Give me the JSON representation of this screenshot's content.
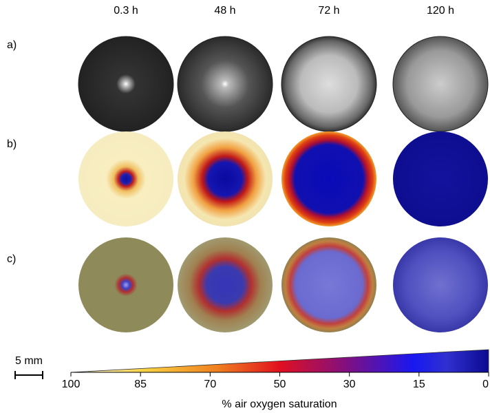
{
  "columns": [
    "0.3 h",
    "48 h",
    "72 h",
    "120 h"
  ],
  "rows": [
    "a)",
    "b)",
    "c)"
  ],
  "scale_bar": "5 mm",
  "colorbar": {
    "label": "% air oxygen saturation",
    "xlim": [
      100,
      0
    ],
    "xticks": [
      100,
      85,
      70,
      50,
      30,
      15,
      0
    ]
  }
}
